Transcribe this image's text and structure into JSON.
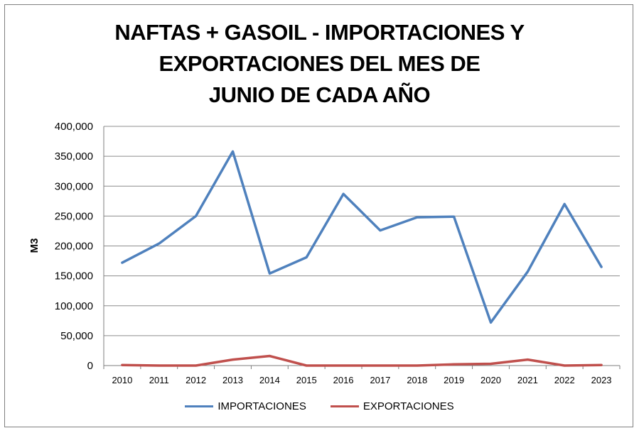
{
  "colors": {
    "importaciones": "#4f81bd",
    "exportaciones": "#c0504d",
    "grid": "#8c8c8c"
  },
  "chart_data": {
    "type": "line",
    "title_lines": [
      "NAFTAS + GASOIL - IMPORTACIONES Y",
      "EXPORTACIONES DEL MES DE",
      "JUNIO DE CADA AÑO"
    ],
    "xlabel": "",
    "ylabel": "M3",
    "ylim": [
      0,
      400000
    ],
    "yticks": [
      "400,000",
      "350,000",
      "300,000",
      "250,000",
      "200,000",
      "150,000",
      "100,000",
      "50,000",
      "0"
    ],
    "categories": [
      "2010",
      "2011",
      "2012",
      "2013",
      "2014",
      "2015",
      "2016",
      "2017",
      "2018",
      "2019",
      "2020",
      "2021",
      "2022",
      "2023"
    ],
    "grid": true,
    "legend_position": "bottom",
    "series": [
      {
        "name": "IMPORTACIONES",
        "values": [
          172000,
          204000,
          250000,
          358000,
          154000,
          181000,
          287000,
          226000,
          248000,
          249000,
          72000,
          157000,
          270000,
          165000
        ]
      },
      {
        "name": "EXPORTACIONES",
        "values": [
          1000,
          0,
          0,
          10000,
          16000,
          0,
          0,
          0,
          0,
          2000,
          3000,
          10000,
          0,
          1000
        ]
      }
    ]
  }
}
